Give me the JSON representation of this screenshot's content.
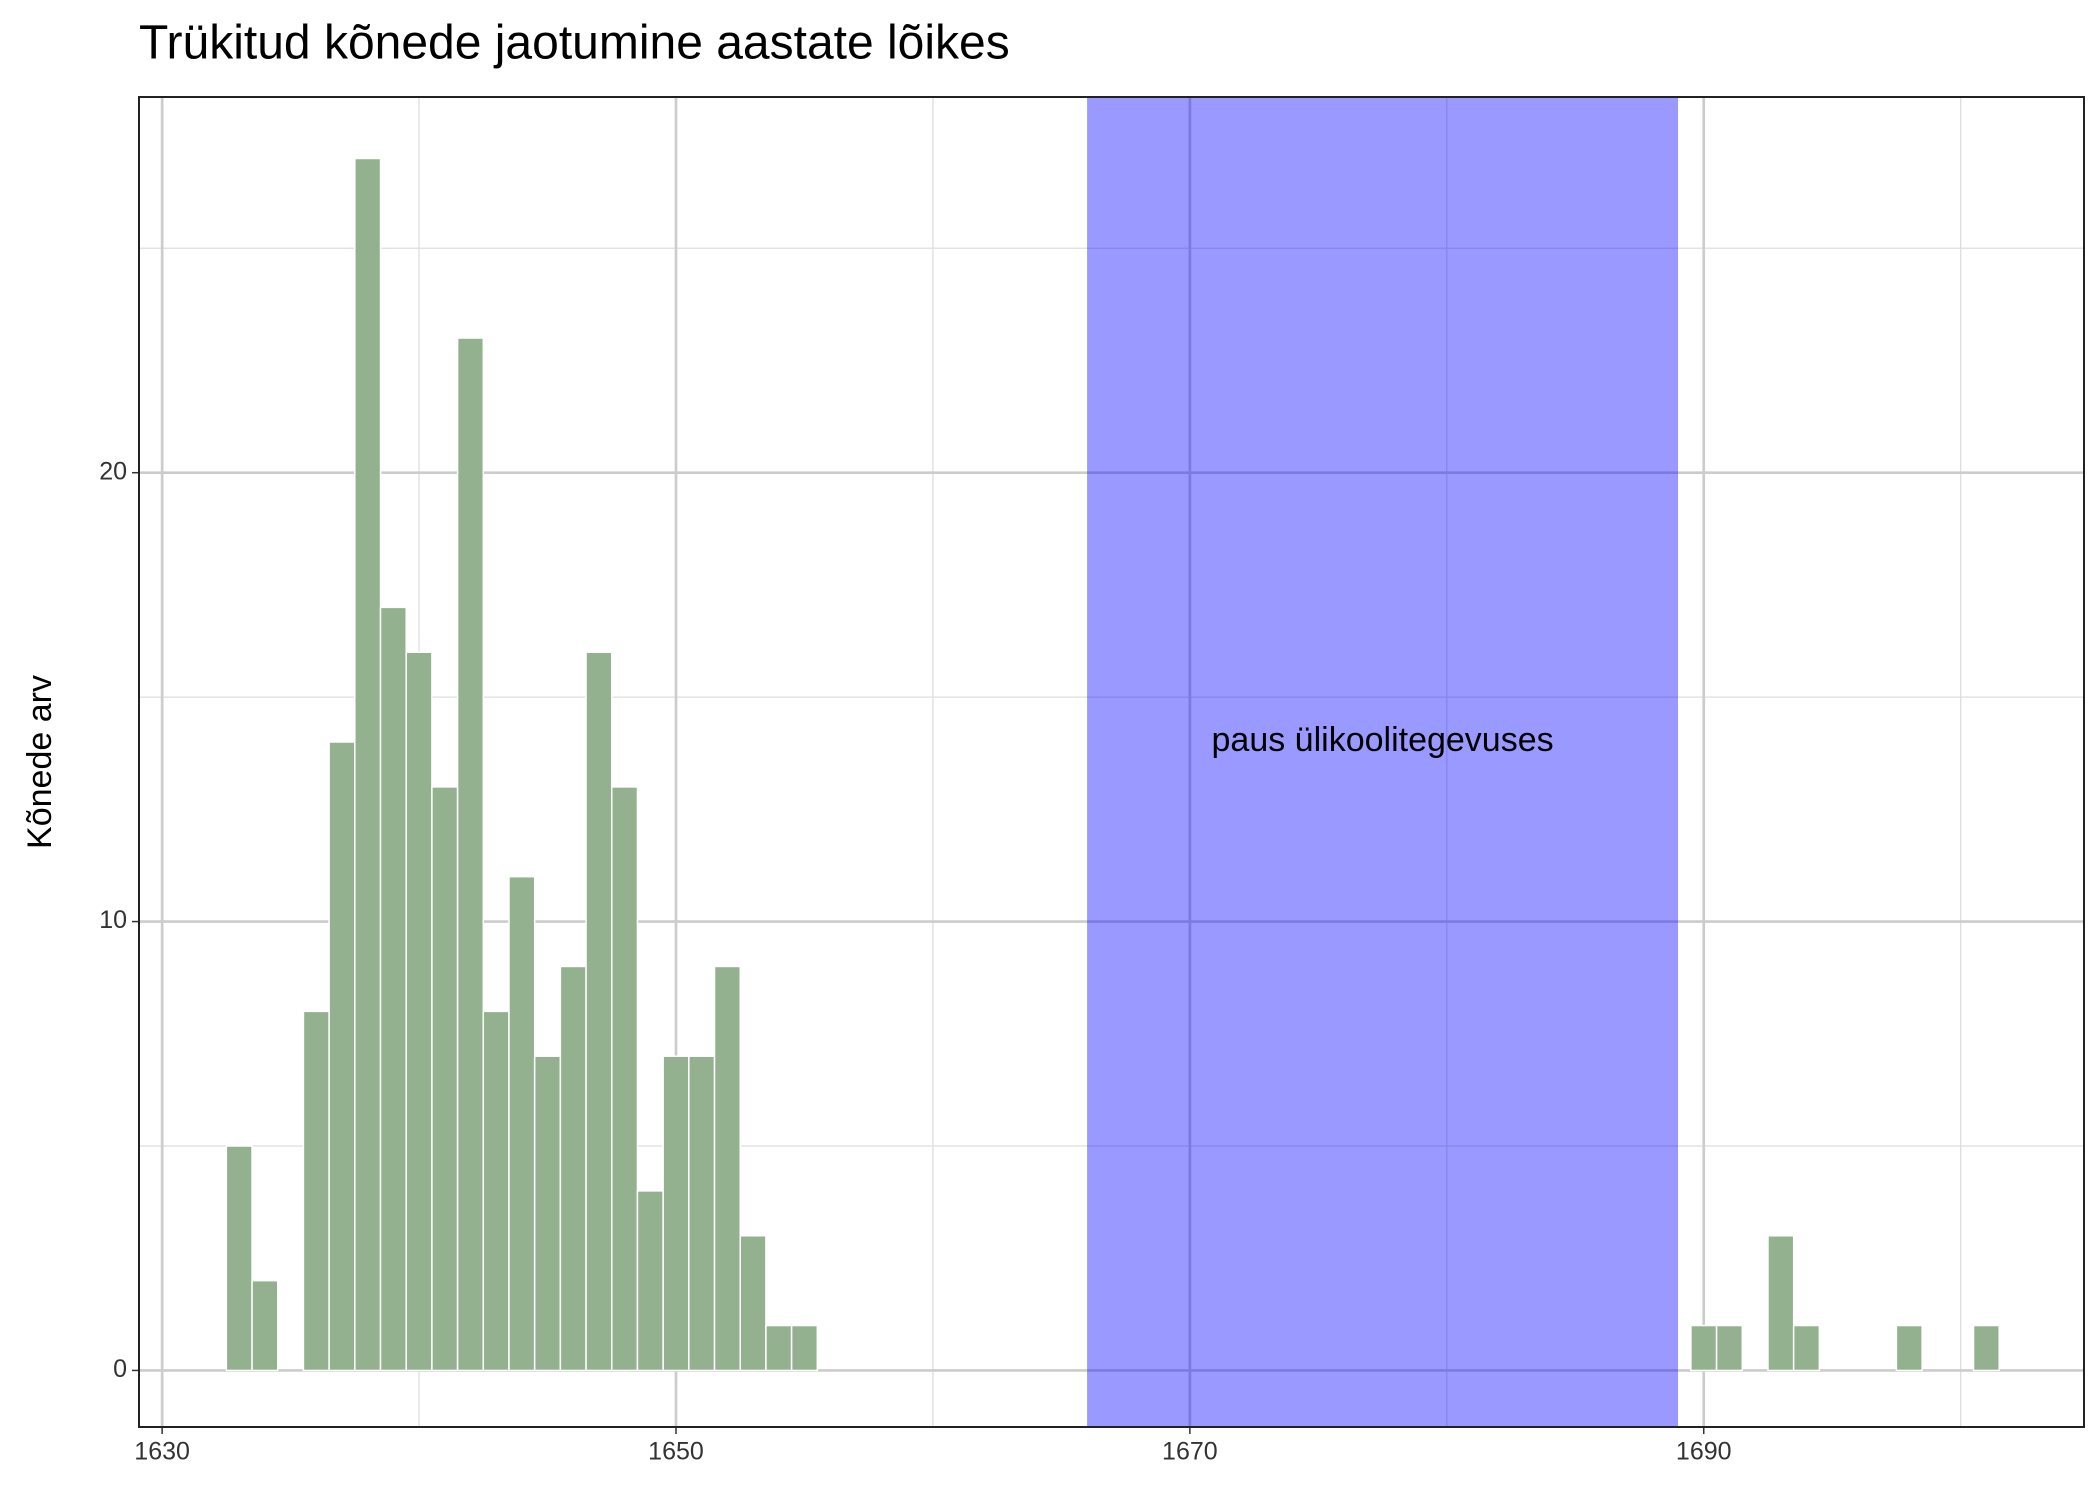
{
  "chart_data": {
    "type": "bar",
    "title": "Trükitud kõnede jaotumine aastate lõikes",
    "y_label": "Kõnede arv",
    "x": [
      1633,
      1634,
      1636,
      1637,
      1638,
      1639,
      1640,
      1641,
      1642,
      1643,
      1644,
      1645,
      1646,
      1647,
      1648,
      1649,
      1650,
      1651,
      1652,
      1653,
      1654,
      1655,
      1690,
      1691,
      1693,
      1694,
      1698,
      1701
    ],
    "values": [
      5,
      2,
      8,
      14,
      27,
      17,
      16,
      13,
      23,
      8,
      11,
      7,
      9,
      16,
      13,
      4,
      7,
      7,
      9,
      3,
      1,
      1,
      1,
      1,
      3,
      1,
      1,
      1
    ],
    "color": "#93b08f",
    "xlim": [
      1629.1,
      1704.8
    ],
    "ylim": [
      -1.26,
      28.37
    ],
    "xticks": [
      1630,
      1650,
      1670,
      1690
    ],
    "yticks": [
      0,
      10,
      20
    ],
    "xminor": [
      1640,
      1660,
      1680,
      1700
    ],
    "yminor": [
      5,
      15,
      25
    ],
    "grid": true,
    "shade": {
      "xmin": 1666,
      "xmax": 1689,
      "color": "blue"
    },
    "annotations": [
      {
        "text": "paus ülikoolitegevuses",
        "x": 1677.5,
        "y": 14
      }
    ]
  }
}
